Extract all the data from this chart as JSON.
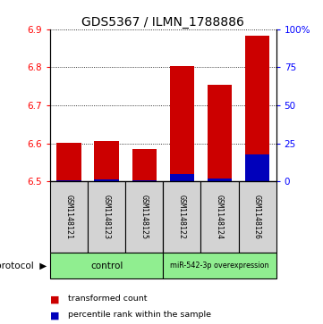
{
  "title": "GDS5367 / ILMN_1788886",
  "samples": [
    "GSM1148121",
    "GSM1148123",
    "GSM1148125",
    "GSM1148122",
    "GSM1148124",
    "GSM1148126"
  ],
  "red_values": [
    6.601,
    6.605,
    6.585,
    6.802,
    6.755,
    6.882
  ],
  "blue_values": [
    1.0,
    1.5,
    1.0,
    5.0,
    2.0,
    18.0
  ],
  "ymin": 6.5,
  "ymax": 6.9,
  "y_ticks": [
    6.5,
    6.6,
    6.7,
    6.8,
    6.9
  ],
  "right_yticks": [
    0,
    25,
    50,
    75,
    100
  ],
  "right_yticklabels": [
    "0",
    "25",
    "50",
    "75",
    "100%"
  ],
  "legend_items": [
    {
      "label": "transformed count",
      "color": "#CC0000"
    },
    {
      "label": "percentile rank within the sample",
      "color": "#0000BB"
    }
  ],
  "bar_width": 0.65,
  "red_color": "#CC0000",
  "blue_color": "#0000BB",
  "sample_bg_color": "#D3D3D3",
  "green_color": "#90EE90",
  "title_fontsize": 10,
  "tick_fontsize": 7.5,
  "label_fontsize": 7.5
}
